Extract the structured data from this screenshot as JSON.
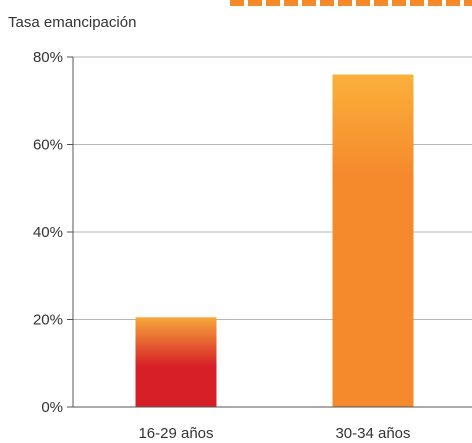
{
  "chart_data": {
    "type": "bar",
    "title": "",
    "ylabel": "Tasa emancipación",
    "xlabel": "",
    "categories": [
      "16-29 años",
      "30-34 años"
    ],
    "series": [
      {
        "values": [
          20.5,
          76
        ]
      }
    ],
    "ylim": [
      0,
      80
    ],
    "yticks": [
      0,
      20,
      40,
      60,
      80
    ],
    "ytick_labels": [
      "0%",
      "20%",
      "40%",
      "60%",
      "80%"
    ],
    "grid": "horizontal",
    "colors": {
      "bar_1_top": "#f6a83a",
      "bar_1_bottom": "#d71f27",
      "bar_2_top": "#fbb03b",
      "bar_2_bottom": "#f58a2c",
      "grid": "#b5b5b5",
      "axis": "#555555"
    }
  }
}
